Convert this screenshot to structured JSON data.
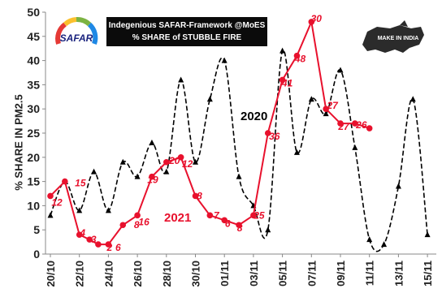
{
  "chart_data": {
    "type": "line",
    "title_lines": [
      "Indegenious SAFAR-Framework @MoES",
      "% SHARE of STUBBLE FIRE"
    ],
    "ylabel": "% SHARE IN PM2.5",
    "xlabel": "",
    "ylim": [
      0,
      50
    ],
    "yticks": [
      0,
      5,
      10,
      15,
      20,
      25,
      30,
      35,
      40,
      45,
      50
    ],
    "xrange": [
      "20/10",
      "15/11"
    ],
    "xticks": [
      "20/10",
      "22/10",
      "24/10",
      "26/10",
      "28/10",
      "30/10",
      "01/11",
      "03/11",
      "05/11",
      "07/11",
      "09/11",
      "11/11",
      "13/11",
      "15/11"
    ],
    "grid": false,
    "series": [
      {
        "name": "2020",
        "style": "dashed",
        "marker": "triangle",
        "color": "#000000",
        "x": [
          "20/10",
          "21/10",
          "22/10",
          "23/10",
          "24/10",
          "25/10",
          "26/10",
          "27/10",
          "28/10",
          "29/10",
          "30/10",
          "31/10",
          "01/11",
          "02/11",
          "03/11",
          "04/11",
          "05/11",
          "06/11",
          "07/11",
          "08/11",
          "09/11",
          "10/11",
          "11/11",
          "12/11",
          "13/11",
          "14/11",
          "15/11"
        ],
        "values": [
          8,
          15,
          9,
          17,
          9,
          19,
          16,
          23,
          17,
          36,
          19,
          32,
          40,
          16,
          10,
          5,
          42,
          21,
          32,
          29,
          38,
          22,
          3,
          2,
          14,
          32,
          4
        ]
      },
      {
        "name": "2021",
        "style": "solid",
        "marker": "circle",
        "color": "#e8112d",
        "x": [
          "20/10",
          "21/10",
          "22/10",
          "22.7/10",
          "23.3/10",
          "24/10",
          "25/10",
          "26/10",
          "27/10",
          "28/10",
          "29/10",
          "30/10",
          "31/10",
          "01/11",
          "02/11",
          "03/11",
          "04/11",
          "05/11",
          "06/11",
          "07/11",
          "08/11",
          "09/11",
          "10/11",
          "11/11"
        ],
        "values": [
          12,
          15,
          4,
          3,
          2,
          2,
          6,
          8,
          16,
          19,
          20,
          12,
          8,
          7,
          6,
          8,
          25,
          36,
          41,
          48,
          30,
          27,
          27,
          26
        ]
      }
    ],
    "data_labels": [
      {
        "text": "12"
      },
      {
        "text": "15"
      },
      {
        "text": "4"
      },
      {
        "text": "3"
      },
      {
        "text": "2"
      },
      {
        "text": "6"
      },
      {
        "text": "8"
      },
      {
        "text": "16"
      },
      {
        "text": "19"
      },
      {
        "text": "20"
      },
      {
        "text": "12"
      },
      {
        "text": "8"
      },
      {
        "text": "7"
      },
      {
        "text": "6"
      },
      {
        "text": "8"
      },
      {
        "text": "25"
      },
      {
        "text": "36"
      },
      {
        "text": "41"
      },
      {
        "text": "48"
      },
      {
        "text": "30"
      },
      {
        "text": "27"
      },
      {
        "text": "27"
      },
      {
        "text": "26"
      }
    ],
    "series_annotations": [
      {
        "text": "2020",
        "color": "#000000"
      },
      {
        "text": "2021",
        "color": "#e8112d"
      }
    ]
  },
  "logos": {
    "safar_text": "SAFAR",
    "make_in_india_text": "MAKE IN INDIA"
  }
}
